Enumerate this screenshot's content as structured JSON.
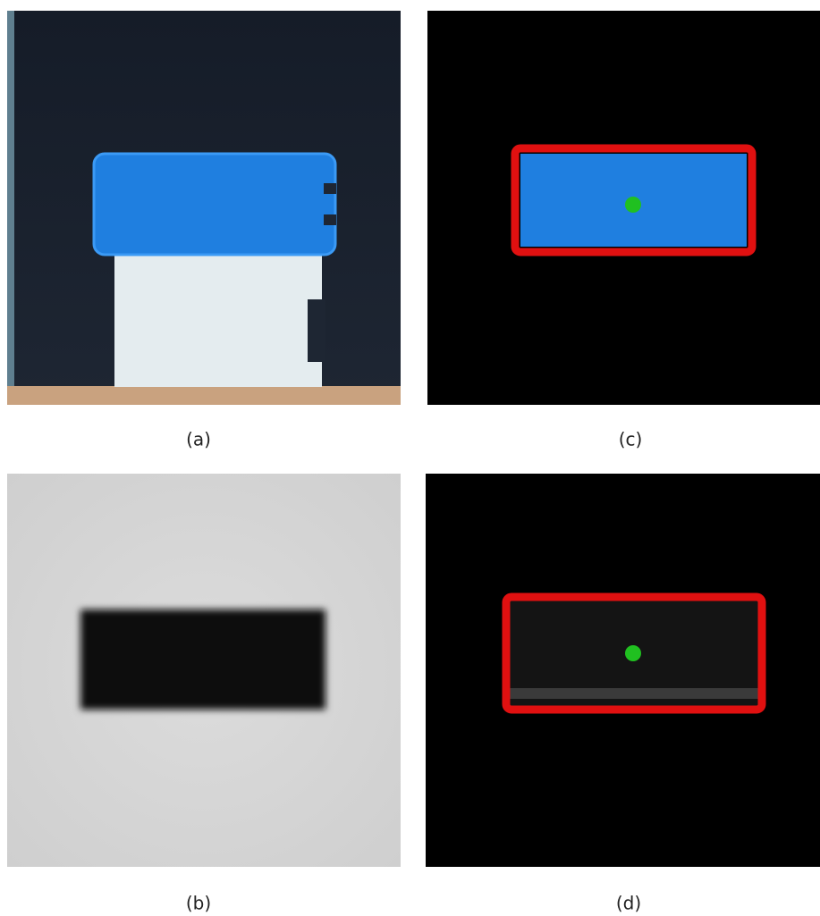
{
  "panels": [
    {
      "caption": "(a)"
    },
    {
      "caption": "(c)"
    },
    {
      "caption": "(b)"
    },
    {
      "caption": "(d)"
    }
  ]
}
